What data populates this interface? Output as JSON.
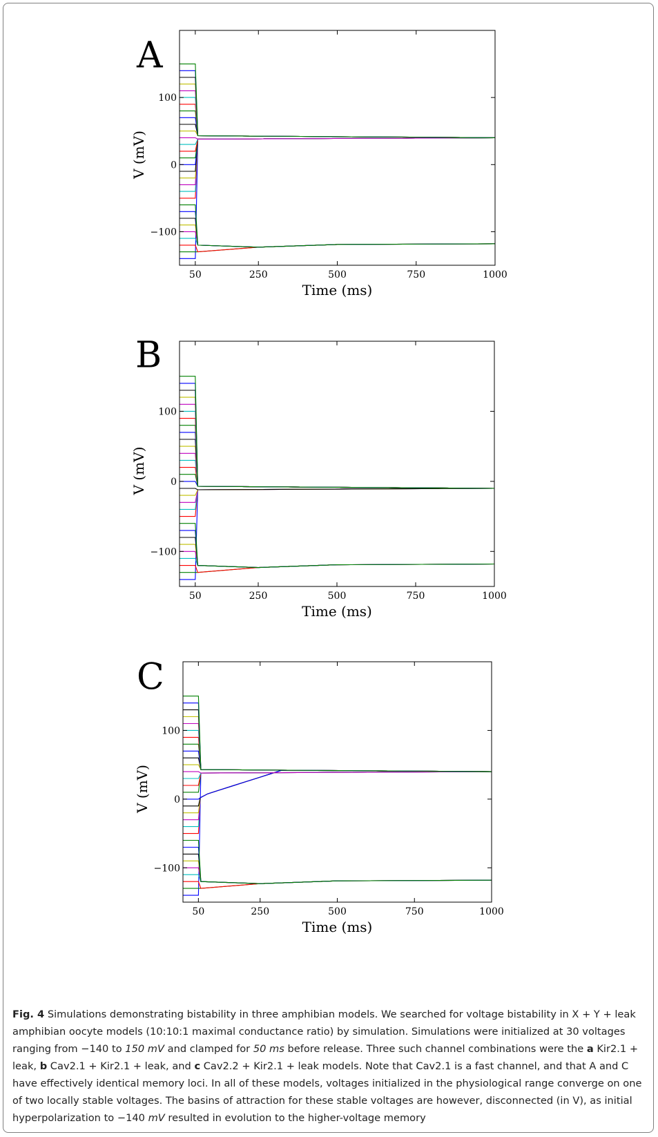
{
  "chart_data": [
    {
      "type": "line",
      "panel_label": "A",
      "xlabel": "Time (ms)",
      "ylabel": "V (mV)",
      "xlim": [
        0,
        1000
      ],
      "ylim": [
        -150,
        200
      ],
      "xticks": [
        50,
        250,
        500,
        750,
        1000
      ],
      "yticks": [
        -100,
        0,
        100
      ],
      "clamp_duration_ms": 50,
      "initial_voltages_mV": [
        -140,
        -130,
        -120,
        -110,
        -100,
        -90,
        -80,
        -70,
        -60,
        -50,
        -40,
        -30,
        -20,
        -10,
        0,
        10,
        20,
        30,
        40,
        50,
        60,
        70,
        80,
        90,
        100,
        110,
        120,
        130,
        140,
        150
      ],
      "stable_voltages_mV": [
        40,
        -118
      ],
      "series": [
        {
          "start": -140,
          "end": 40
        },
        {
          "start": -130,
          "end": -118
        },
        {
          "start": -120,
          "end": -118
        },
        {
          "start": -110,
          "end": -118
        },
        {
          "start": -100,
          "end": -118
        },
        {
          "start": -90,
          "end": -118
        },
        {
          "start": -80,
          "end": -118
        },
        {
          "start": -70,
          "end": -118
        },
        {
          "start": -60,
          "end": -118
        },
        {
          "start": -50,
          "end": 40
        },
        {
          "start": -40,
          "end": 40
        },
        {
          "start": -30,
          "end": 40
        },
        {
          "start": -20,
          "end": 40
        },
        {
          "start": -10,
          "end": 40
        },
        {
          "start": 0,
          "end": 40
        },
        {
          "start": 10,
          "end": 40
        },
        {
          "start": 20,
          "end": 40
        },
        {
          "start": 30,
          "end": 40
        },
        {
          "start": 40,
          "end": 40
        },
        {
          "start": 50,
          "end": 40
        },
        {
          "start": 60,
          "end": 40
        },
        {
          "start": 70,
          "end": 40
        },
        {
          "start": 80,
          "end": 40
        },
        {
          "start": 90,
          "end": 40
        },
        {
          "start": 100,
          "end": 40
        },
        {
          "start": 110,
          "end": 40
        },
        {
          "start": 120,
          "end": 40
        },
        {
          "start": 130,
          "end": 40
        },
        {
          "start": 140,
          "end": 40
        },
        {
          "start": 150,
          "end": 40
        }
      ]
    },
    {
      "type": "line",
      "panel_label": "B",
      "xlabel": "Time (ms)",
      "ylabel": "V (mV)",
      "xlim": [
        0,
        1000
      ],
      "ylim": [
        -150,
        200
      ],
      "xticks": [
        50,
        250,
        500,
        750,
        1000
      ],
      "yticks": [
        -100,
        0,
        100
      ],
      "clamp_duration_ms": 50,
      "initial_voltages_mV": [
        -140,
        -130,
        -120,
        -110,
        -100,
        -90,
        -80,
        -70,
        -60,
        -50,
        -40,
        -30,
        -20,
        -10,
        0,
        10,
        20,
        30,
        40,
        50,
        60,
        70,
        80,
        90,
        100,
        110,
        120,
        130,
        140,
        150
      ],
      "stable_voltages_mV": [
        -10,
        -118
      ],
      "series": [
        {
          "start": -140,
          "end": -10
        },
        {
          "start": -130,
          "end": -118
        },
        {
          "start": -120,
          "end": -118
        },
        {
          "start": -110,
          "end": -118
        },
        {
          "start": -100,
          "end": -118
        },
        {
          "start": -90,
          "end": -118
        },
        {
          "start": -80,
          "end": -118
        },
        {
          "start": -70,
          "end": -118
        },
        {
          "start": -60,
          "end": -118
        },
        {
          "start": -50,
          "end": -10
        },
        {
          "start": -40,
          "end": -10
        },
        {
          "start": -30,
          "end": -10
        },
        {
          "start": -20,
          "end": -10
        },
        {
          "start": -10,
          "end": -10
        },
        {
          "start": 0,
          "end": -10
        },
        {
          "start": 10,
          "end": -10
        },
        {
          "start": 20,
          "end": -10
        },
        {
          "start": 30,
          "end": -10
        },
        {
          "start": 40,
          "end": -10
        },
        {
          "start": 50,
          "end": -10
        },
        {
          "start": 60,
          "end": -10
        },
        {
          "start": 70,
          "end": -10
        },
        {
          "start": 80,
          "end": -10
        },
        {
          "start": 90,
          "end": -10
        },
        {
          "start": 100,
          "end": -10
        },
        {
          "start": 110,
          "end": -10
        },
        {
          "start": 120,
          "end": -10
        },
        {
          "start": 130,
          "end": -10
        },
        {
          "start": 140,
          "end": -10
        },
        {
          "start": 150,
          "end": -10
        }
      ]
    },
    {
      "type": "line",
      "panel_label": "C",
      "xlabel": "Time (ms)",
      "ylabel": "V (mV)",
      "xlim": [
        0,
        1000
      ],
      "ylim": [
        -150,
        200
      ],
      "xticks": [
        50,
        250,
        500,
        750,
        1000
      ],
      "yticks": [
        -100,
        0,
        100
      ],
      "clamp_duration_ms": 50,
      "initial_voltages_mV": [
        -140,
        -130,
        -120,
        -110,
        -100,
        -90,
        -80,
        -70,
        -60,
        -50,
        -40,
        -30,
        -20,
        -10,
        0,
        10,
        20,
        30,
        40,
        50,
        60,
        70,
        80,
        90,
        100,
        110,
        120,
        130,
        140,
        150
      ],
      "stable_voltages_mV": [
        40,
        -118
      ],
      "series": [
        {
          "start": -140,
          "end": 40
        },
        {
          "start": -130,
          "end": -118
        },
        {
          "start": -120,
          "end": -118
        },
        {
          "start": -110,
          "end": -118
        },
        {
          "start": -100,
          "end": -118
        },
        {
          "start": -90,
          "end": -118
        },
        {
          "start": -80,
          "end": -118
        },
        {
          "start": -70,
          "end": -118
        },
        {
          "start": -60,
          "end": -118
        },
        {
          "start": -50,
          "end": 40
        },
        {
          "start": -40,
          "end": 40
        },
        {
          "start": -30,
          "end": 40
        },
        {
          "start": -20,
          "end": 40
        },
        {
          "start": -10,
          "end": 40
        },
        {
          "start": 0,
          "end": 40
        },
        {
          "start": 10,
          "end": 40
        },
        {
          "start": 20,
          "end": 40
        },
        {
          "start": 30,
          "end": 40
        },
        {
          "start": 40,
          "end": 40
        },
        {
          "start": 50,
          "end": 40
        },
        {
          "start": 60,
          "end": 40
        },
        {
          "start": 70,
          "end": 40
        },
        {
          "start": 80,
          "end": 40
        },
        {
          "start": 90,
          "end": 40
        },
        {
          "start": 100,
          "end": 40
        },
        {
          "start": 110,
          "end": 40
        },
        {
          "start": 120,
          "end": 40
        },
        {
          "start": 130,
          "end": 40
        },
        {
          "start": 140,
          "end": 40
        },
        {
          "start": 150,
          "end": 40
        }
      ]
    }
  ],
  "series_colors": [
    "#0000ff",
    "#008000",
    "#ff0000",
    "#00bfbf",
    "#bf00bf",
    "#bfbf00",
    "#000000"
  ],
  "caption": {
    "figure_label": "Fig. 4",
    "text_1": " Simulations demonstrating bistability in three amphibian models. We searched for voltage bistability in X + Y + leak amphibian oocyte models (10:10:1 maximal conductance ratio) by simulation. Simulations were initialized at 30 voltages ranging from −140 to ",
    "em_1": "150 mV",
    "text_2": " and clamped for ",
    "em_2": "50 ms",
    "text_3": " before release. Three such channel combinations were the ",
    "bold_a": "a",
    "text_4": " Kir2.1 + leak, ",
    "bold_b": "b",
    "text_5": " Cav2.1 + Kir2.1 + leak, and ",
    "bold_c": "c",
    "text_6": " Cav2.2 + Kir2.1 + leak models. Note that Cav2.1 is a fast channel, and that A and C have effectively identical memory loci. In all of these models, voltages initialized in the physiological range converge on one of two locally stable voltages. The basins of attraction for these stable voltages are however, disconnected (in V), as initial hyperpolarization to −140 ",
    "em_3": "mV",
    "text_7": " resulted in evolution to the higher-voltage memory"
  }
}
